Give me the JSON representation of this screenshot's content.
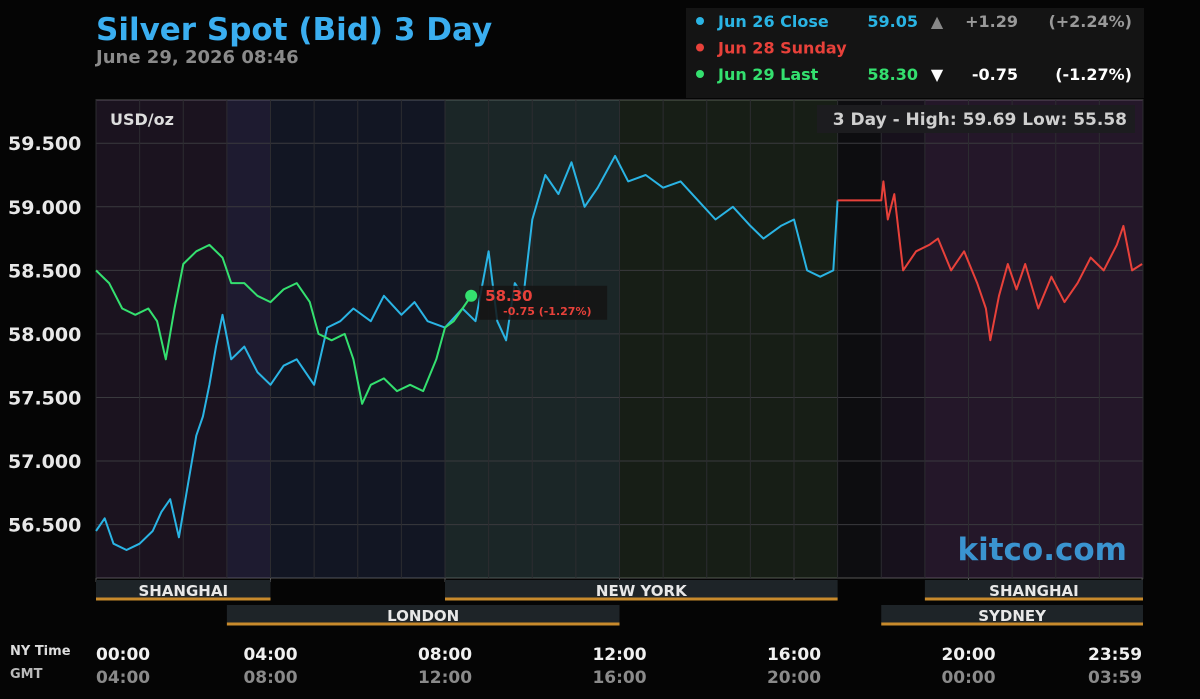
{
  "chart_data": {
    "type": "line",
    "title": "Silver Spot (Bid) 3 Day",
    "subtitle": "June 29, 2026 08:46",
    "unit_label": "USD/oz",
    "range_label": "3 Day - High: 59.69  Low: 55.58",
    "watermark": "kitco.com",
    "x_axis_label": "NY Time",
    "x2_axis_label": "GMT",
    "xlim": [
      0,
      24
    ],
    "ylim": [
      56.08,
      59.84
    ],
    "yticks": [
      {
        "value": 56.5,
        "label": "56.500"
      },
      {
        "value": 57,
        "label": "57.000"
      },
      {
        "value": 57.5,
        "label": "57.500"
      },
      {
        "value": 58,
        "label": "58.000"
      },
      {
        "value": 58.5,
        "label": "58.500"
      },
      {
        "value": 59,
        "label": "59.000"
      },
      {
        "value": 59.5,
        "label": "59.500"
      }
    ],
    "xticks": [
      {
        "value": 0,
        "label": "00:00"
      },
      {
        "value": 4,
        "label": "04:00"
      },
      {
        "value": 8,
        "label": "08:00"
      },
      {
        "value": 12,
        "label": "12:00"
      },
      {
        "value": 16,
        "label": "16:00"
      },
      {
        "value": 20,
        "label": "20:00"
      },
      {
        "value": 23.98,
        "label": "23:59"
      }
    ],
    "x2ticks": [
      {
        "value": 0,
        "label": "04:00"
      },
      {
        "value": 4,
        "label": "08:00"
      },
      {
        "value": 8,
        "label": "12:00"
      },
      {
        "value": 12,
        "label": "16:00"
      },
      {
        "value": 16,
        "label": "20:00"
      },
      {
        "value": 20,
        "label": "00:00"
      },
      {
        "value": 23.98,
        "label": "03:59"
      }
    ],
    "grid": true,
    "sessions": [
      {
        "name": "SHANGHAI",
        "start": 0,
        "end": 4
      },
      {
        "name": "LONDON",
        "start": 3,
        "end": 12
      },
      {
        "name": "NEW YORK",
        "start": 8,
        "end": 17
      },
      {
        "name": "SHANGHAI",
        "start": 19,
        "end": 24
      },
      {
        "name": "SYDNEY",
        "start": 18,
        "end": 24
      }
    ],
    "series": [
      {
        "name": "Jun 26 Close",
        "color": "#2ab4e4",
        "summary": [
          "59.05",
          "▲",
          "+1.29",
          "(+2.24%)"
        ],
        "x": [
          0,
          0.2,
          0.4,
          0.7,
          1.0,
          1.3,
          1.5,
          1.7,
          1.9,
          2.1,
          2.3,
          2.45,
          2.6,
          2.75,
          2.9,
          3.1,
          3.4,
          3.7,
          4.0,
          4.3,
          4.6,
          5.0,
          5.3,
          5.6,
          5.9,
          6.3,
          6.6,
          7.0,
          7.3,
          7.6,
          8.0,
          8.4,
          8.7,
          9.0,
          9.2,
          9.4,
          9.6,
          9.8,
          10.0,
          10.3,
          10.6,
          10.9,
          11.2,
          11.5,
          11.9,
          12.2,
          12.6,
          13.0,
          13.4,
          13.8,
          14.2,
          14.6,
          15.0,
          15.3,
          15.7,
          16.0,
          16.3,
          16.6,
          16.9,
          17.0
        ],
        "values": [
          56.45,
          56.55,
          56.35,
          56.3,
          56.35,
          56.45,
          56.6,
          56.7,
          56.4,
          56.8,
          57.2,
          57.35,
          57.6,
          57.9,
          58.15,
          57.8,
          57.9,
          57.7,
          57.6,
          57.75,
          57.8,
          57.6,
          58.05,
          58.1,
          58.2,
          58.1,
          58.3,
          58.15,
          58.25,
          58.1,
          58.05,
          58.2,
          58.1,
          58.65,
          58.1,
          57.95,
          58.4,
          58.3,
          58.9,
          59.25,
          59.1,
          59.35,
          59.0,
          59.15,
          59.4,
          59.2,
          59.25,
          59.15,
          59.2,
          59.05,
          58.9,
          59.0,
          58.85,
          58.75,
          58.85,
          58.9,
          58.5,
          58.45,
          58.5,
          59.05
        ]
      },
      {
        "name": "Jun 28 Sunday",
        "color": "#e8413a",
        "x": [
          17.0,
          18.0,
          18.05,
          18.15,
          18.3,
          18.5,
          18.8,
          19.1,
          19.3,
          19.6,
          19.9,
          20.2,
          20.4,
          20.5,
          20.7,
          20.9,
          21.1,
          21.3,
          21.6,
          21.9,
          22.2,
          22.5,
          22.8,
          23.1,
          23.4,
          23.55,
          23.75,
          23.98
        ],
        "values": [
          59.05,
          59.05,
          59.2,
          58.9,
          59.1,
          58.5,
          58.65,
          58.7,
          58.75,
          58.5,
          58.65,
          58.4,
          58.2,
          57.95,
          58.3,
          58.55,
          58.35,
          58.55,
          58.2,
          58.45,
          58.25,
          58.4,
          58.6,
          58.5,
          58.7,
          58.85,
          58.5,
          58.55
        ]
      },
      {
        "name": "Jun 29 Last",
        "color": "#34e06f",
        "summary": [
          "58.30",
          "▼",
          "-0.75",
          "(-1.27%)"
        ],
        "last_label": "58.30",
        "last_change": "-0.75 (-1.27%)",
        "x": [
          0,
          0.3,
          0.6,
          0.9,
          1.2,
          1.4,
          1.6,
          1.8,
          2.0,
          2.3,
          2.6,
          2.9,
          3.1,
          3.4,
          3.7,
          4.0,
          4.3,
          4.6,
          4.9,
          5.1,
          5.4,
          5.7,
          5.9,
          6.1,
          6.3,
          6.6,
          6.9,
          7.2,
          7.5,
          7.8,
          8.0,
          8.2,
          8.4,
          8.6
        ],
        "values": [
          58.5,
          58.4,
          58.2,
          58.15,
          58.2,
          58.1,
          57.8,
          58.2,
          58.55,
          58.65,
          58.7,
          58.6,
          58.4,
          58.4,
          58.3,
          58.25,
          58.35,
          58.4,
          58.25,
          58.0,
          57.95,
          58.0,
          57.8,
          57.45,
          57.6,
          57.65,
          57.55,
          57.6,
          57.55,
          57.8,
          58.05,
          58.1,
          58.2,
          58.3
        ]
      }
    ]
  }
}
